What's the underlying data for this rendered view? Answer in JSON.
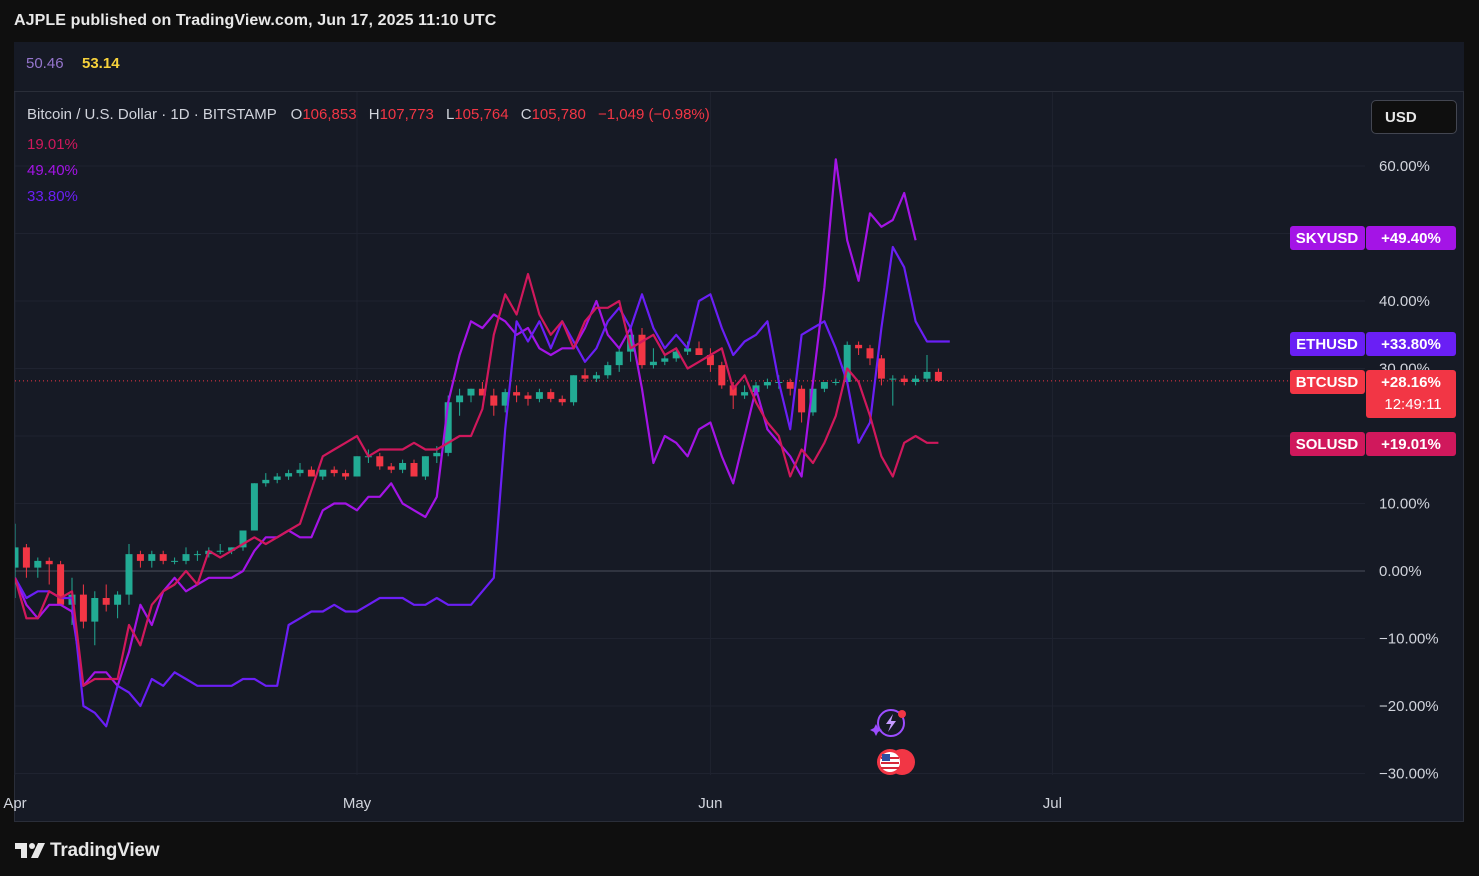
{
  "header": {
    "publisher": "AJPLE published on TradingView.com, Jun 17, 2025 11:10 UTC"
  },
  "indicator": {
    "value1": "50.46",
    "value2": "53.14"
  },
  "legend": {
    "symbol": "Bitcoin / U.S. Dollar · 1D · BITSTAMP",
    "o_label": "O",
    "o_value": "106,853",
    "h_label": "H",
    "h_value": "107,773",
    "l_label": "L",
    "l_value": "105,764",
    "c_label": "C",
    "c_value": "105,780",
    "change": "−1,049 (−0.98%)",
    "compare_values": [
      "19.01%",
      "49.40%",
      "33.80%"
    ]
  },
  "currency_button": "USD",
  "footer": {
    "brand": "TradingView"
  },
  "colors": {
    "background": "#161a25",
    "up": "#22ab94",
    "down": "#f23645",
    "sky": "#a414e6",
    "eth": "#6a1ff5",
    "sol": "#d0185c",
    "grid": "#1f2330"
  },
  "chart_data": {
    "type": "line",
    "y_unit": "percent",
    "ylim": [
      -30,
      60
    ],
    "y_ticks": [
      "60.00%",
      "40.00%",
      "30.00%",
      "10.00%",
      "0.00%",
      "−10.00%",
      "−20.00%",
      "−30.00%"
    ],
    "y_tick_values": [
      60,
      40,
      30,
      10,
      0,
      -10,
      -20,
      -30
    ],
    "x_ticks": [
      "Apr",
      "May",
      "Jun",
      "Jul"
    ],
    "x_range": [
      "2025-04-01",
      "2025-07-10"
    ],
    "x_tick_dates": [
      "2025-04-01",
      "2025-05-01",
      "2025-06-01",
      "2025-07-01"
    ],
    "grid": true,
    "badges": [
      {
        "symbol": "SKYUSD",
        "value": "+49.40%",
        "color": "#a414e6",
        "y": 49.4
      },
      {
        "symbol": "ETHUSD",
        "value": "+33.80%",
        "color": "#6a1ff5",
        "y": 33.8
      },
      {
        "symbol": "BTCUSD",
        "value": "+28.16%",
        "timer": "12:49:11",
        "color": "#f23645",
        "y": 28.16
      },
      {
        "symbol": "SOLUSD",
        "value": "+19.01%",
        "color": "#d0185c",
        "y": 19.01
      }
    ],
    "series": [
      {
        "name": "SKYUSD",
        "color": "#a414e6",
        "x_start": "2025-04-01",
        "values": [
          -1,
          -5,
          -7,
          -5,
          -5,
          -6,
          -17,
          -15,
          -15,
          -17,
          -12,
          -5,
          -8,
          -3,
          -1,
          -3,
          -2,
          -1,
          -1,
          -1,
          0,
          3,
          5,
          5,
          6,
          5,
          5,
          9,
          10,
          10,
          9,
          11,
          11,
          13,
          10,
          9,
          8,
          11,
          25,
          32,
          37,
          36,
          38,
          37,
          35,
          36,
          33,
          32,
          33,
          33,
          36,
          40,
          35,
          33,
          36,
          27,
          16,
          20,
          19,
          17,
          21,
          22,
          17,
          13,
          20,
          27,
          21,
          19,
          17,
          14,
          28,
          42,
          61,
          49,
          43,
          53,
          51,
          52,
          56,
          49
        ]
      },
      {
        "name": "ETHUSD",
        "color": "#6a1ff5",
        "x_start": "2025-04-01",
        "values": [
          -1,
          -4,
          -3,
          -3,
          -4,
          -4,
          -20,
          -21,
          -23,
          -17,
          -18,
          -20,
          -16,
          -17,
          -15,
          -16,
          -17,
          -17,
          -17,
          -17,
          -16,
          -16,
          -17,
          -17,
          -8,
          -7,
          -6,
          -6,
          -5,
          -6,
          -6,
          -5,
          -4,
          -4,
          -4,
          -5,
          -5,
          -4,
          -5,
          -5,
          -5,
          -3,
          -1,
          21,
          37,
          34,
          37,
          33,
          37,
          34,
          31,
          33,
          37,
          39,
          36,
          41,
          36,
          33,
          35,
          33,
          40,
          41,
          36,
          32,
          34,
          35,
          37,
          28,
          21,
          35,
          36,
          37,
          33,
          28,
          19,
          22,
          36,
          48,
          45,
          37,
          34,
          34,
          34
        ]
      },
      {
        "name": "SOLUSD",
        "color": "#d0185c",
        "x_start": "2025-04-01",
        "values": [
          -1,
          -7,
          -7,
          -3,
          -4,
          -3,
          -17,
          -16,
          -16,
          -16,
          -8,
          -11,
          -5,
          -3,
          -2,
          0,
          -2,
          3,
          2,
          3,
          4,
          5,
          4,
          5,
          6,
          7,
          12,
          17,
          18,
          19,
          20,
          17,
          18,
          18,
          18,
          19,
          18,
          18,
          19,
          20,
          20,
          24,
          35,
          41,
          38,
          44,
          38,
          35,
          37,
          33,
          37,
          39,
          39,
          40,
          33,
          34,
          35,
          32,
          33,
          30,
          31,
          32,
          33,
          27,
          29,
          25,
          22,
          20,
          14,
          18,
          16,
          19,
          23,
          30,
          28,
          23,
          17,
          14,
          19,
          20,
          19,
          19
        ]
      }
    ],
    "candles_note": "BTCUSD daily candles, percent scale",
    "candles": [
      {
        "o": 0.5,
        "h": 7,
        "l": -4,
        "c": 3.5
      },
      {
        "o": 3.5,
        "h": 4,
        "l": -1,
        "c": 0.5
      },
      {
        "o": 0.5,
        "h": 2,
        "l": -1,
        "c": 1.5
      },
      {
        "o": 1.5,
        "h": 2,
        "l": -2,
        "c": 1
      },
      {
        "o": 1,
        "h": 1.5,
        "l": -5,
        "c": -5
      },
      {
        "o": -5,
        "h": -1,
        "l": -8,
        "c": -3.5
      },
      {
        "o": -3.5,
        "h": -2,
        "l": -8.5,
        "c": -7.5
      },
      {
        "o": -7.5,
        "h": -3,
        "l": -11,
        "c": -4
      },
      {
        "o": -4,
        "h": -2,
        "l": -6,
        "c": -5
      },
      {
        "o": -5,
        "h": -3,
        "l": -7,
        "c": -3.5
      },
      {
        "o": -3.5,
        "h": 4,
        "l": -5,
        "c": 2.5
      },
      {
        "o": 2.5,
        "h": 3,
        "l": 0.5,
        "c": 1.5
      },
      {
        "o": 1.5,
        "h": 3,
        "l": 0.5,
        "c": 2.5
      },
      {
        "o": 2.5,
        "h": 3,
        "l": 1,
        "c": 1.5
      },
      {
        "o": 1.5,
        "h": 2,
        "l": 1,
        "c": 1.5
      },
      {
        "o": 1.5,
        "h": 3.5,
        "l": 1,
        "c": 2.5
      },
      {
        "o": 2.5,
        "h": 3,
        "l": 1.5,
        "c": 2.5
      },
      {
        "o": 2.5,
        "h": 3.5,
        "l": 2,
        "c": 3
      },
      {
        "o": 3,
        "h": 4,
        "l": 2.5,
        "c": 3
      },
      {
        "o": 3,
        "h": 3.5,
        "l": 2.5,
        "c": 3.5
      },
      {
        "o": 3.5,
        "h": 6,
        "l": 3,
        "c": 6
      },
      {
        "o": 6,
        "h": 13,
        "l": 6,
        "c": 13
      },
      {
        "o": 13,
        "h": 14.5,
        "l": 12.5,
        "c": 13.5
      },
      {
        "o": 13.5,
        "h": 14.5,
        "l": 13,
        "c": 14
      },
      {
        "o": 14,
        "h": 15,
        "l": 13.5,
        "c": 14.5
      },
      {
        "o": 14.5,
        "h": 16,
        "l": 14,
        "c": 15
      },
      {
        "o": 15,
        "h": 15.5,
        "l": 14,
        "c": 14
      },
      {
        "o": 14,
        "h": 15,
        "l": 13.5,
        "c": 15
      },
      {
        "o": 15,
        "h": 15.5,
        "l": 14,
        "c": 14.5
      },
      {
        "o": 14.5,
        "h": 15,
        "l": 13.5,
        "c": 14
      },
      {
        "o": 14,
        "h": 17,
        "l": 14,
        "c": 17
      },
      {
        "o": 17,
        "h": 18,
        "l": 16,
        "c": 17
      },
      {
        "o": 17,
        "h": 17.5,
        "l": 15,
        "c": 15.5
      },
      {
        "o": 15.5,
        "h": 16,
        "l": 14.5,
        "c": 15
      },
      {
        "o": 15,
        "h": 16.5,
        "l": 14.5,
        "c": 16
      },
      {
        "o": 16,
        "h": 16.5,
        "l": 14,
        "c": 14
      },
      {
        "o": 14,
        "h": 17,
        "l": 13.5,
        "c": 17
      },
      {
        "o": 17,
        "h": 18.5,
        "l": 16,
        "c": 17.5
      },
      {
        "o": 17.5,
        "h": 26,
        "l": 17,
        "c": 25
      },
      {
        "o": 25,
        "h": 27,
        "l": 23,
        "c": 26
      },
      {
        "o": 26,
        "h": 27,
        "l": 25,
        "c": 27
      },
      {
        "o": 27,
        "h": 28,
        "l": 26,
        "c": 26
      },
      {
        "o": 26,
        "h": 27,
        "l": 23,
        "c": 24.5
      },
      {
        "o": 24.5,
        "h": 27,
        "l": 23.5,
        "c": 26.5
      },
      {
        "o": 26.5,
        "h": 27.5,
        "l": 25,
        "c": 26
      },
      {
        "o": 26,
        "h": 26.5,
        "l": 24.5,
        "c": 25.5
      },
      {
        "o": 25.5,
        "h": 27,
        "l": 25,
        "c": 26.5
      },
      {
        "o": 26.5,
        "h": 27,
        "l": 25,
        "c": 25.5
      },
      {
        "o": 25.5,
        "h": 26,
        "l": 24.5,
        "c": 25
      },
      {
        "o": 25,
        "h": 29,
        "l": 24.5,
        "c": 29
      },
      {
        "o": 29,
        "h": 30,
        "l": 28,
        "c": 28.5
      },
      {
        "o": 28.5,
        "h": 29.5,
        "l": 28,
        "c": 29
      },
      {
        "o": 29,
        "h": 31,
        "l": 28.5,
        "c": 30.5
      },
      {
        "o": 30.5,
        "h": 33,
        "l": 29.5,
        "c": 32.5
      },
      {
        "o": 32.5,
        "h": 35,
        "l": 31,
        "c": 35
      },
      {
        "o": 35,
        "h": 36,
        "l": 30,
        "c": 30.5
      },
      {
        "o": 30.5,
        "h": 33,
        "l": 30,
        "c": 31
      },
      {
        "o": 31,
        "h": 32,
        "l": 30.5,
        "c": 31.5
      },
      {
        "o": 31.5,
        "h": 33,
        "l": 31,
        "c": 32.5
      },
      {
        "o": 32.5,
        "h": 34,
        "l": 32,
        "c": 33
      },
      {
        "o": 33,
        "h": 34,
        "l": 32,
        "c": 32
      },
      {
        "o": 32,
        "h": 33,
        "l": 29.5,
        "c": 30.5
      },
      {
        "o": 30.5,
        "h": 31,
        "l": 27,
        "c": 27.5
      },
      {
        "o": 27.5,
        "h": 28,
        "l": 24,
        "c": 26
      },
      {
        "o": 26,
        "h": 27.5,
        "l": 25.5,
        "c": 26.5
      },
      {
        "o": 26.5,
        "h": 28,
        "l": 26,
        "c": 27.5
      },
      {
        "o": 27.5,
        "h": 28.5,
        "l": 27,
        "c": 28
      },
      {
        "o": 28,
        "h": 29,
        "l": 27,
        "c": 28
      },
      {
        "o": 28,
        "h": 28.5,
        "l": 26,
        "c": 27
      },
      {
        "o": 27,
        "h": 27.5,
        "l": 22,
        "c": 23.5
      },
      {
        "o": 23.5,
        "h": 27,
        "l": 23,
        "c": 27
      },
      {
        "o": 27,
        "h": 28,
        "l": 26.5,
        "c": 28
      },
      {
        "o": 28,
        "h": 28.5,
        "l": 27.5,
        "c": 28
      },
      {
        "o": 28,
        "h": 34,
        "l": 28,
        "c": 33.5
      },
      {
        "o": 33.5,
        "h": 34,
        "l": 32,
        "c": 33
      },
      {
        "o": 33,
        "h": 33.5,
        "l": 30.5,
        "c": 31.5
      },
      {
        "o": 31.5,
        "h": 32,
        "l": 27.5,
        "c": 28.5
      },
      {
        "o": 28.5,
        "h": 29,
        "l": 24.5,
        "c": 28.5
      },
      {
        "o": 28.5,
        "h": 29,
        "l": 27.5,
        "c": 28
      },
      {
        "o": 28,
        "h": 29,
        "l": 27.5,
        "c": 28.5
      },
      {
        "o": 28.5,
        "h": 32,
        "l": 28,
        "c": 29.5
      },
      {
        "o": 29.5,
        "h": 30,
        "l": 28,
        "c": 28.16
      }
    ]
  }
}
